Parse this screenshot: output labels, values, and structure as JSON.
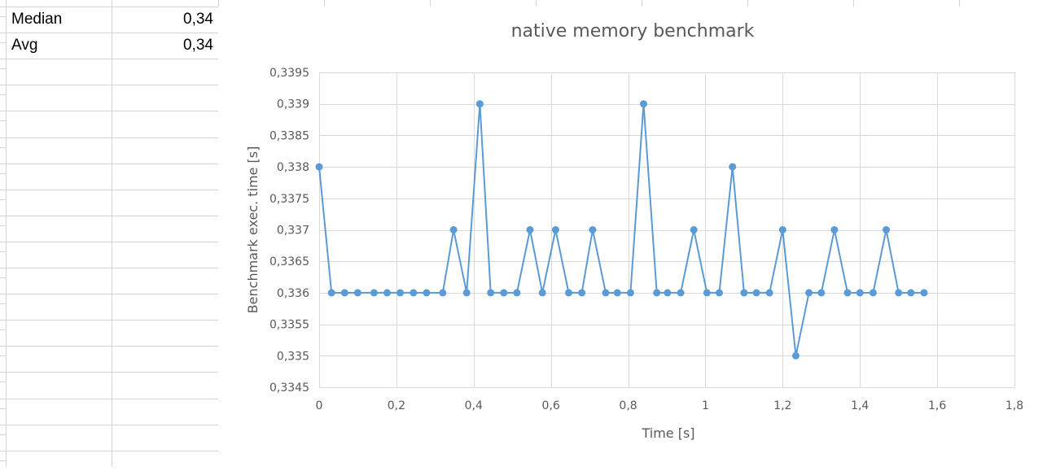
{
  "sheet": {
    "rows": [
      {
        "label": "Median",
        "value": "0,34"
      },
      {
        "label": "Avg",
        "value": "0,34"
      }
    ]
  },
  "chart_data": {
    "type": "scatter",
    "style": "markers-with-lines",
    "title": "native memory benchmark",
    "xlabel": "Time [s]",
    "ylabel": "Benchmark exec. time [s]",
    "xlim": [
      0,
      1.8
    ],
    "ylim": [
      0.3345,
      0.3395
    ],
    "xticks": [
      "0",
      "0,2",
      "0,4",
      "0,6",
      "0,8",
      "1",
      "1,2",
      "1,4",
      "1,6",
      "1,8"
    ],
    "yticks": [
      "0,3345",
      "0,335",
      "0,3355",
      "0,336",
      "0,3365",
      "0,337",
      "0,3375",
      "0,338",
      "0,3385",
      "0,339",
      "0,3395"
    ],
    "grid": true,
    "legend": "none",
    "color": "#5b9bd5",
    "series": [
      {
        "x": [
          0,
          0.032,
          0.066,
          0.1,
          0.142,
          0.176,
          0.21,
          0.244,
          0.278,
          0.32,
          0.348,
          0.382,
          0.416,
          0.444,
          0.478,
          0.512,
          0.546,
          0.578,
          0.612,
          0.646,
          0.68,
          0.708,
          0.742,
          0.772,
          0.806,
          0.84,
          0.874,
          0.902,
          0.936,
          0.97,
          1.004,
          1.036,
          1.07,
          1.1,
          1.132,
          1.166,
          1.2,
          1.234,
          1.268,
          1.3,
          1.334,
          1.368,
          1.4,
          1.434,
          1.468,
          1.5,
          1.532,
          1.566
        ],
        "y": [
          0.338,
          0.336,
          0.336,
          0.336,
          0.336,
          0.336,
          0.336,
          0.336,
          0.336,
          0.336,
          0.337,
          0.336,
          0.339,
          0.336,
          0.336,
          0.336,
          0.337,
          0.336,
          0.337,
          0.336,
          0.336,
          0.337,
          0.336,
          0.336,
          0.336,
          0.339,
          0.336,
          0.336,
          0.336,
          0.337,
          0.336,
          0.336,
          0.338,
          0.336,
          0.336,
          0.336,
          0.337,
          0.335,
          0.336,
          0.336,
          0.337,
          0.336,
          0.336,
          0.336,
          0.337,
          0.336,
          0.336,
          0.336
        ]
      }
    ]
  }
}
